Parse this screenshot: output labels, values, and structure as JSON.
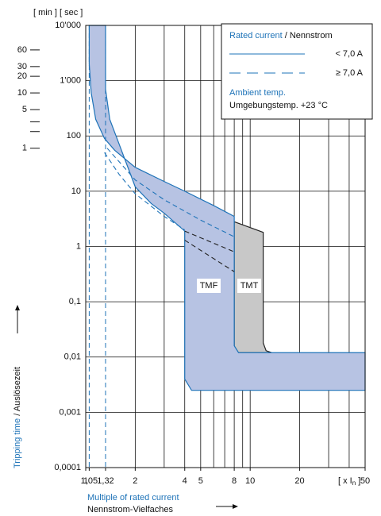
{
  "chart_data": {
    "type": "area",
    "x_log": true,
    "y_log": true,
    "xlim": [
      1,
      50
    ],
    "ylim": [
      0.0001,
      10000
    ],
    "xticks": [
      1,
      {
        "value": 1.05,
        "label": "1,05"
      },
      {
        "value": 1.32,
        "label": "1,32"
      },
      2,
      4,
      5,
      8,
      10,
      20,
      50
    ],
    "yticks": [
      {
        "value": 0.0001,
        "label": "0,0001"
      },
      {
        "value": 0.001,
        "label": "0,001"
      },
      {
        "value": 0.01,
        "label": "0,01"
      },
      {
        "value": 0.1,
        "label": "0,1"
      },
      1,
      10,
      100,
      {
        "value": 1000,
        "label": "1'000"
      },
      {
        "value": 10000,
        "label": "10'000"
      }
    ],
    "x_grid": [
      2,
      3,
      4,
      5,
      6,
      7,
      8,
      9,
      10,
      20,
      30,
      40
    ],
    "grid": true,
    "minute_ticks": [
      60,
      30,
      20,
      10,
      5,
      1
    ],
    "minute_minor_ticks": [
      3,
      2
    ],
    "seconds_per_minute": 60,
    "y_units": "[ min ] [ sec ]",
    "y_label_en": "Tripping time",
    "y_label_de": " / Auslösezeit",
    "x_label_en": "Multiple of rated current",
    "x_label_de": "Nennstrom-Vielfaches",
    "x_unit": {
      "text": "[ x I",
      "sub": "n",
      "end": " ]"
    },
    "reference_x": [
      1.05,
      1.32
    ],
    "series": [
      {
        "name": "TMT",
        "color": "#c8c8c8",
        "stroke": "#222222",
        "x": [
          8,
          12,
          12,
          12.5,
          13.5,
          8
        ],
        "values": [
          2.8,
          1.8,
          0.018,
          0.013,
          0.012,
          0.012
        ]
      },
      {
        "name": "TMF",
        "color": "#b7c3e3",
        "stroke": "#1e73b8",
        "x": [
          1.05,
          1.05,
          1.08,
          1.15,
          1.3,
          1.5,
          2,
          3,
          4,
          6,
          8,
          8,
          8.5,
          50,
          50,
          4.4,
          4,
          4,
          3,
          2.5,
          2,
          1.6,
          1.4,
          1.32,
          1.32
        ],
        "values": [
          10000,
          2000,
          600,
          200,
          90,
          55,
          27,
          15,
          10,
          5.5,
          3.5,
          0.016,
          0.012,
          0.012,
          0.0025,
          0.0025,
          0.004,
          1.9,
          4,
          6,
          12,
          70,
          200,
          700,
          10000
        ]
      },
      {
        "color": "#1e73b8",
        "dash": true,
        "x": [
          1.35,
          2,
          3,
          5,
          8
        ],
        "values": [
          60,
          16,
          7,
          3,
          1.5
        ]
      },
      {
        "color": "#1e73b8",
        "dash": true,
        "x": [
          1.3,
          1.6,
          2,
          3,
          4
        ],
        "values": [
          50,
          20,
          9,
          3.5,
          2
        ]
      },
      {
        "color": "#222222",
        "dash": true,
        "x": [
          4,
          8
        ],
        "values": [
          1.9,
          0.8
        ]
      },
      {
        "color": "#222222",
        "dash": true,
        "x": [
          4,
          8
        ],
        "values": [
          1.3,
          0.35
        ]
      }
    ],
    "legend": {
      "position": "top-right",
      "title_en": "Rated current",
      "title_de": " / Nennstrom",
      "items": [
        {
          "label": "< 7,0 A",
          "dash": false
        },
        {
          "label": "≥ 7,0 A",
          "dash": true
        }
      ],
      "ambient_en": "Ambient temp.",
      "ambient_de": "Umgebungstemp. +23 °C"
    }
  }
}
